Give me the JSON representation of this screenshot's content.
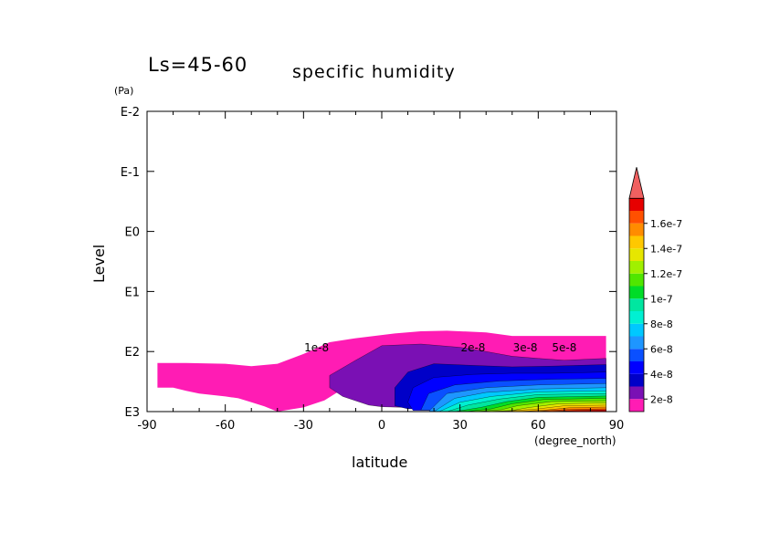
{
  "header": {
    "left_label": "Ls=45-60",
    "title": "specific humidity"
  },
  "chart_data": {
    "type": "heatmap",
    "title": "specific humidity",
    "xlabel": "latitude",
    "x_unit": "(degree_north)",
    "ylabel": "Level",
    "y_unit": "(Pa)",
    "x_ticks": [
      "-90",
      "-60",
      "-30",
      "0",
      "30",
      "60",
      "90"
    ],
    "x_tick_values": [
      -90,
      -60,
      -30,
      0,
      30,
      60,
      90
    ],
    "y_ticks": [
      "E-2",
      "E-1",
      "E0",
      "E1",
      "E2",
      "E3"
    ],
    "y_tick_exponents": [
      -2,
      -1,
      0,
      1,
      2,
      3
    ],
    "xlim": [
      -90,
      90
    ],
    "ylim_pa": [
      1000,
      0.01
    ],
    "y_scale": "log",
    "y_direction": "pressure decreasing upward",
    "colorbar": {
      "labels": [
        "2e-8",
        "4e-8",
        "6e-8",
        "8e-8",
        "1e-7",
        "1.2e-7",
        "1.4e-7",
        "1.6e-7"
      ],
      "levels": [
        1e-08,
        2e-08,
        3e-08,
        4e-08,
        5e-08,
        6e-08,
        7e-08,
        8e-08,
        9e-08,
        1e-07,
        1.1e-07,
        1.2e-07,
        1.3e-07,
        1.4e-07,
        1.5e-07,
        1.6e-07,
        1.7e-07
      ],
      "colors": [
        "#ff1cb4",
        "#7a10b4",
        "#0000c8",
        "#0000ff",
        "#0a50ff",
        "#1e96ff",
        "#00c8ff",
        "#00f0d2",
        "#00e6a0",
        "#00dc28",
        "#50e600",
        "#a0f000",
        "#e6e600",
        "#ffc800",
        "#ff8c00",
        "#ff5000",
        "#e60000"
      ],
      "extend_color": "#f06060"
    },
    "contour_labels": [
      {
        "text": "1e-8",
        "lat": -25,
        "p": 100
      },
      {
        "text": "2e-8",
        "lat": 35,
        "p": 100
      },
      {
        "text": "3e-8",
        "lat": 55,
        "p": 100
      },
      {
        "text": "5e-8",
        "lat": 70,
        "p": 100
      }
    ],
    "fields": [
      {
        "level": 1e-08,
        "outline": [
          [
            -86,
            250
          ],
          [
            -86,
            400
          ],
          [
            -80,
            400
          ],
          [
            -75,
            450
          ],
          [
            -70,
            500
          ],
          [
            -60,
            560
          ],
          [
            -55,
            600
          ],
          [
            -50,
            700
          ],
          [
            -45,
            820
          ],
          [
            -40,
            1000
          ],
          [
            -30,
            850
          ],
          [
            -22,
            650
          ],
          [
            -15,
            420
          ],
          [
            0,
            230
          ],
          [
            10,
            180
          ],
          [
            25,
            190
          ],
          [
            35,
            220
          ],
          [
            45,
            280
          ],
          [
            55,
            300
          ],
          [
            86,
            300
          ],
          [
            86,
            55
          ],
          [
            60,
            55
          ],
          [
            50,
            55
          ],
          [
            40,
            48
          ],
          [
            25,
            45
          ],
          [
            15,
            46
          ],
          [
            5,
            50
          ],
          [
            -10,
            60
          ],
          [
            -20,
            70
          ],
          [
            -30,
            110
          ],
          [
            -40,
            160
          ],
          [
            -50,
            175
          ],
          [
            -60,
            160
          ],
          [
            -75,
            155
          ],
          [
            -86,
            155
          ]
        ]
      },
      {
        "level": 2e-08,
        "outline": [
          [
            -20,
            400
          ],
          [
            -15,
            560
          ],
          [
            -5,
            780
          ],
          [
            0,
            830
          ],
          [
            30,
            900
          ],
          [
            86,
            800
          ],
          [
            86,
            130
          ],
          [
            70,
            140
          ],
          [
            60,
            130
          ],
          [
            50,
            120
          ],
          [
            40,
            100
          ],
          [
            30,
            85
          ],
          [
            15,
            75
          ],
          [
            0,
            80
          ],
          [
            -10,
            140
          ],
          [
            -20,
            250
          ]
        ]
      },
      {
        "level": 3e-08,
        "outline": [
          [
            5,
            800
          ],
          [
            10,
            900
          ],
          [
            86,
            900
          ],
          [
            86,
            165
          ],
          [
            65,
            175
          ],
          [
            50,
            180
          ],
          [
            35,
            170
          ],
          [
            20,
            160
          ],
          [
            10,
            220
          ],
          [
            5,
            400
          ]
        ]
      },
      {
        "level": 4e-08,
        "outline": [
          [
            10,
            700
          ],
          [
            12,
            960
          ],
          [
            86,
            960
          ],
          [
            86,
            220
          ],
          [
            65,
            230
          ],
          [
            50,
            230
          ],
          [
            35,
            240
          ],
          [
            20,
            270
          ],
          [
            12,
            400
          ]
        ]
      },
      {
        "level": 5e-08,
        "outline": [
          [
            15,
            950
          ],
          [
            86,
            950
          ],
          [
            86,
            280
          ],
          [
            65,
            290
          ],
          [
            45,
            310
          ],
          [
            28,
            360
          ],
          [
            18,
            500
          ]
        ]
      },
      {
        "level": 6e-08,
        "outline": [
          [
            18,
            1000
          ],
          [
            86,
            1000
          ],
          [
            86,
            340
          ],
          [
            60,
            360
          ],
          [
            40,
            400
          ],
          [
            25,
            500
          ]
        ]
      },
      {
        "level": 7e-08,
        "outline": [
          [
            20,
            1000
          ],
          [
            86,
            1000
          ],
          [
            86,
            400
          ],
          [
            60,
            420
          ],
          [
            40,
            480
          ],
          [
            28,
            600
          ]
        ]
      },
      {
        "level": 8e-08,
        "outline": [
          [
            22,
            1000
          ],
          [
            86,
            1000
          ],
          [
            86,
            450
          ],
          [
            60,
            470
          ],
          [
            42,
            560
          ],
          [
            30,
            700
          ]
        ]
      },
      {
        "level": 9e-08,
        "outline": [
          [
            25,
            1000
          ],
          [
            86,
            1000
          ],
          [
            86,
            500
          ],
          [
            60,
            520
          ],
          [
            45,
            620
          ],
          [
            33,
            780
          ]
        ]
      },
      {
        "level": 1e-07,
        "outline": [
          [
            28,
            1000
          ],
          [
            86,
            1000
          ],
          [
            86,
            550
          ],
          [
            60,
            580
          ],
          [
            48,
            680
          ],
          [
            38,
            850
          ]
        ]
      },
      {
        "level": 1.1e-07,
        "outline": [
          [
            32,
            1000
          ],
          [
            86,
            1000
          ],
          [
            86,
            600
          ],
          [
            62,
            630
          ],
          [
            50,
            740
          ],
          [
            42,
            900
          ]
        ]
      },
      {
        "level": 1.2e-07,
        "outline": [
          [
            36,
            1000
          ],
          [
            86,
            1000
          ],
          [
            86,
            660
          ],
          [
            65,
            680
          ],
          [
            52,
            800
          ],
          [
            46,
            930
          ]
        ]
      },
      {
        "level": 1.3e-07,
        "outline": [
          [
            40,
            1000
          ],
          [
            86,
            1000
          ],
          [
            86,
            720
          ],
          [
            68,
            740
          ],
          [
            56,
            860
          ],
          [
            50,
            960
          ]
        ]
      },
      {
        "level": 1.4e-07,
        "outline": [
          [
            45,
            1000
          ],
          [
            86,
            1000
          ],
          [
            86,
            780
          ],
          [
            70,
            800
          ],
          [
            60,
            900
          ]
        ]
      },
      {
        "level": 1.5e-07,
        "outline": [
          [
            52,
            1000
          ],
          [
            86,
            1000
          ],
          [
            86,
            840
          ],
          [
            72,
            860
          ],
          [
            62,
            950
          ]
        ]
      },
      {
        "level": 1.6e-07,
        "outline": [
          [
            58,
            1000
          ],
          [
            86,
            1000
          ],
          [
            86,
            900
          ],
          [
            72,
            920
          ]
        ]
      },
      {
        "level": 1.7e-07,
        "outline": [
          [
            62,
            1000
          ],
          [
            86,
            1000
          ],
          [
            86,
            940
          ],
          [
            75,
            960
          ]
        ]
      }
    ]
  }
}
